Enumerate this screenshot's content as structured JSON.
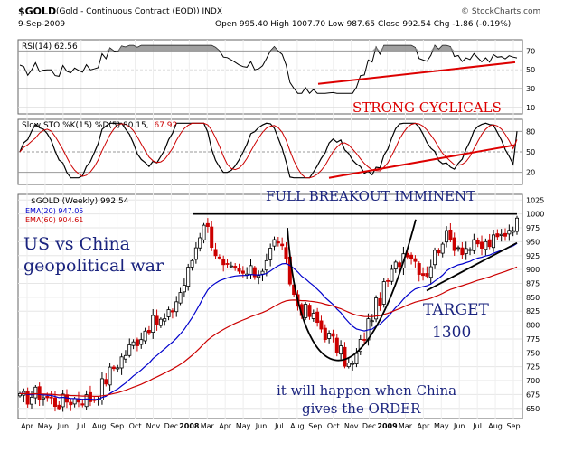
{
  "header": {
    "symbol": "$GOLD",
    "description": "(Gold - Continuous Contract (EOD)) INDX",
    "date": "9-Sep-2009",
    "open_label": "Open",
    "open": "995.40",
    "high_label": "High",
    "high": "1007.70",
    "low_label": "Low",
    "low": "987.65",
    "close_label": "Close",
    "close": "992.54",
    "chg_label": "Chg",
    "chg": "-1.86 (-0.19%)",
    "brand": "© StockCharts.com"
  },
  "rsi_panel": {
    "label": "RSI(14) 62.56",
    "ticks": [
      "70",
      "50",
      "30",
      "10"
    ]
  },
  "sto_panel": {
    "label_prefix": "Slow STO %K(15) %D(5) 80.15,",
    "label_value": "67.92",
    "ticks": [
      "80",
      "50",
      "20"
    ]
  },
  "price_panel": {
    "label": "$GOLD (Weekly) 992.54",
    "ema20_label": "EMA(20) 947.05",
    "ema60_label": "EMA(60) 904.61",
    "ticks": [
      "1025",
      "1000",
      "975",
      "950",
      "925",
      "900",
      "875",
      "850",
      "825",
      "800",
      "775",
      "750",
      "725",
      "700",
      "675",
      "650"
    ]
  },
  "x_axis": [
    "Apr",
    "May",
    "Jun",
    "Jul",
    "Aug",
    "Sep",
    "Oct",
    "Nov",
    "Dec",
    "2008",
    "Mar",
    "Apr",
    "May",
    "Jun",
    "Jul",
    "Aug",
    "Sep",
    "Oct",
    "Nov",
    "Dec",
    "2009",
    "Mar",
    "Apr",
    "May",
    "Jun",
    "Jul",
    "Aug",
    "Sep"
  ],
  "annotations": {
    "strong_cyclicals": "STRONG CYCLICALS",
    "full_breakout": "FULL BREAKOUT IMMINENT",
    "geo_line1": "US vs China",
    "geo_line2": "geopolitical war",
    "target_line1": "TARGET",
    "target_line2": "1300",
    "china_line1": "it will happen when China",
    "china_line2": "gives the ORDER"
  },
  "colors": {
    "up": "#000000",
    "down": "#cc0000",
    "ema20": "#0000cc",
    "ema60": "#cc0000",
    "annotation": "#1a237e",
    "trendline": "#dd0000",
    "panel_bg": "#ffffff"
  },
  "chart_data": {
    "type": "candlestick",
    "title": "$GOLD (Gold - Continuous Contract (EOD)) INDX",
    "period": "Weekly",
    "ylim": [
      635,
      1032
    ],
    "close_path_months": [
      {
        "month": "Apr",
        "close": 665
      },
      {
        "month": "May",
        "close": 678
      },
      {
        "month": "Jun",
        "close": 660
      },
      {
        "month": "Jul",
        "close": 668
      },
      {
        "month": "Aug",
        "close": 668
      },
      {
        "month": "Sep",
        "close": 720
      },
      {
        "month": "Oct",
        "close": 760
      },
      {
        "month": "Nov",
        "close": 800
      },
      {
        "month": "Dec",
        "close": 810
      },
      {
        "month": "2008",
        "close": 880
      },
      {
        "month": "Mar",
        "close": 990
      },
      {
        "month": "Apr",
        "close": 900
      },
      {
        "month": "May",
        "close": 890
      },
      {
        "month": "Jun",
        "close": 895
      },
      {
        "month": "Jul",
        "close": 960
      },
      {
        "month": "Aug",
        "close": 840
      },
      {
        "month": "Sep",
        "close": 810
      },
      {
        "month": "Oct",
        "close": 770
      },
      {
        "month": "Nov",
        "close": 720
      },
      {
        "month": "Dec",
        "close": 810
      },
      {
        "month": "2009",
        "close": 880
      },
      {
        "month": "Mar",
        "close": 940
      },
      {
        "month": "Apr",
        "close": 890
      },
      {
        "month": "May",
        "close": 960
      },
      {
        "month": "Jun",
        "close": 940
      },
      {
        "month": "Jul",
        "close": 940
      },
      {
        "month": "Aug",
        "close": 955
      },
      {
        "month": "Sep",
        "close": 992
      }
    ],
    "ema20_last": 947.05,
    "ema60_last": 904.61,
    "rsi_last": 62.56,
    "sto_k_last": 80.15,
    "sto_d_last": 67.92,
    "resistance_level": 1000
  }
}
